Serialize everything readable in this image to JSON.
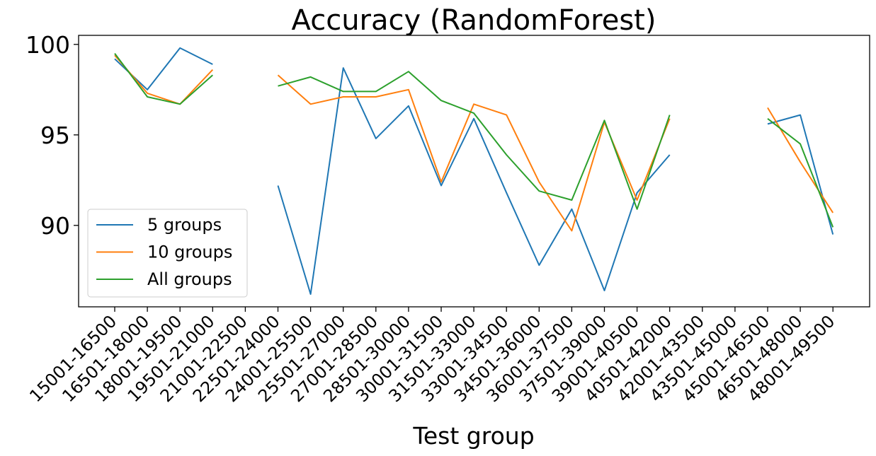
{
  "chart_data": {
    "type": "line",
    "title": "Accuracy (RandomForest)",
    "xlabel": "Test group",
    "ylabel": "",
    "categories": [
      "15001-16500",
      "16501-18000",
      "18001-19500",
      "19501-21000",
      "21001-22500",
      "22501-24000",
      "24001-25500",
      "25501-27000",
      "27001-28500",
      "28501-30000",
      "30001-31500",
      "31501-33000",
      "33001-34500",
      "34501-36000",
      "36001-37500",
      "37501-39000",
      "39001-40500",
      "40501-42000",
      "42001-43500",
      "43501-45000",
      "45001-46500",
      "46501-48000",
      "48001-49500"
    ],
    "yticks": [
      90,
      95,
      100
    ],
    "ylim": [
      85.5,
      100.5
    ],
    "grid": false,
    "legend_position": "lower-left",
    "series": [
      {
        "name": "5 groups",
        "color": "#1f77b4",
        "values": [
          99.2,
          97.5,
          99.8,
          98.9,
          null,
          92.2,
          86.2,
          98.7,
          94.8,
          96.6,
          92.2,
          95.9,
          91.8,
          87.8,
          90.9,
          86.4,
          91.8,
          93.9,
          null,
          null,
          95.6,
          96.1,
          89.5
        ]
      },
      {
        "name": "10 groups",
        "color": "#ff7f0e",
        "values": [
          99.4,
          97.3,
          96.7,
          98.6,
          null,
          98.3,
          96.7,
          97.1,
          97.1,
          97.5,
          92.4,
          96.7,
          96.1,
          92.4,
          89.7,
          95.7,
          91.4,
          95.9,
          null,
          null,
          96.5,
          93.5,
          90.7
        ]
      },
      {
        "name": "All groups",
        "color": "#2ca02c",
        "values": [
          99.5,
          97.1,
          96.7,
          98.3,
          null,
          97.7,
          98.2,
          97.4,
          97.4,
          98.5,
          96.9,
          96.2,
          93.9,
          91.9,
          91.4,
          95.8,
          90.9,
          96.1,
          null,
          null,
          95.9,
          94.5,
          89.9
        ]
      }
    ]
  }
}
